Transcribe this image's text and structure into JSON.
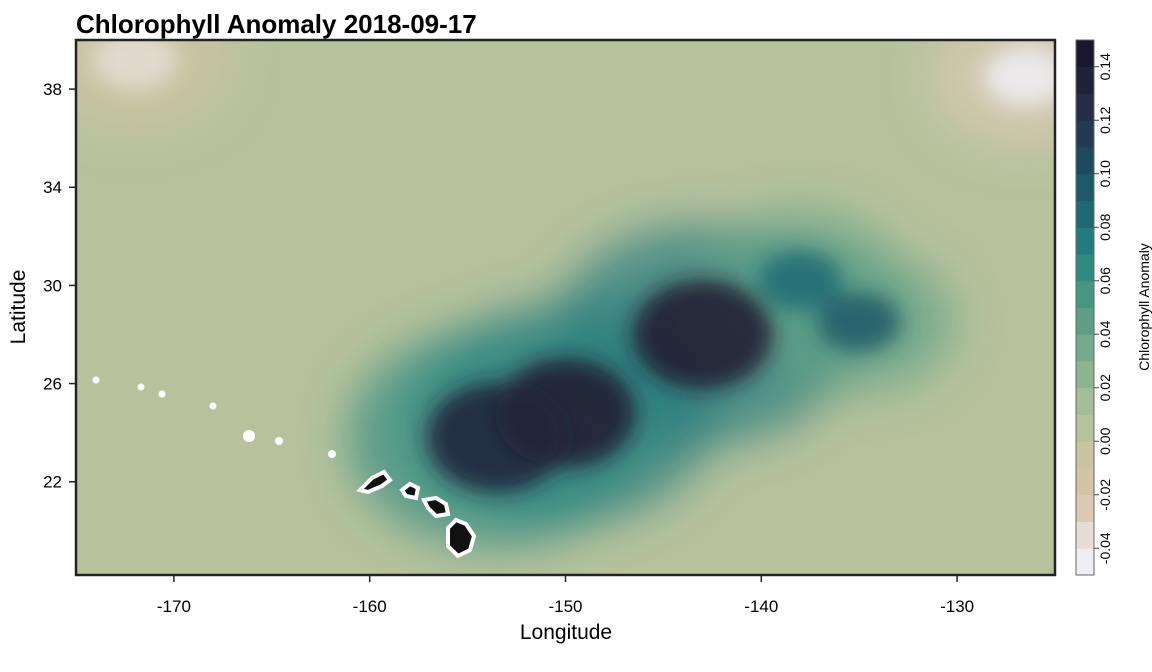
{
  "chart_data": {
    "type": "heatmap",
    "title": "Chlorophyll Anomaly 2018-09-17",
    "xlabel": "Longitude",
    "ylabel": "Latitude",
    "xlim": [
      -175,
      -125
    ],
    "ylim": [
      18.2,
      40
    ],
    "x_ticks": [
      -170,
      -160,
      -150,
      -140,
      -130
    ],
    "y_ticks": [
      22,
      26,
      30,
      34,
      38
    ],
    "colorbar": {
      "label": "Chlorophyll Anomaly",
      "range": [
        -0.05,
        0.15
      ],
      "ticks": [
        "-0.04",
        "-0.02",
        "0.00",
        "0.02",
        "0.04",
        "0.06",
        "0.08",
        "0.10",
        "0.12",
        "0.14"
      ],
      "colors": [
        "#efedf5",
        "#e6ddd6",
        "#ddcab4",
        "#d2c4a4",
        "#c7c49f",
        "#b7c29d",
        "#a3bd97",
        "#8cb58f",
        "#74aa89",
        "#5c9f86",
        "#449582",
        "#2f8a80",
        "#227b7d",
        "#1d6a75",
        "#1d5a6a",
        "#1f4a5e",
        "#223b52",
        "#242d46",
        "#22213a",
        "#1c1730"
      ]
    },
    "background_value": 0.005,
    "features": [
      {
        "name": "high anomaly region",
        "lon": -150,
        "lat": 24.8,
        "value": 0.14
      },
      {
        "name": "high anomaly region",
        "lon": -143,
        "lat": 28.0,
        "value": 0.14
      },
      {
        "name": "high anomaly region",
        "lon": -153.5,
        "lat": 23.8,
        "value": 0.13
      },
      {
        "name": "moderate anomaly region",
        "lon": -138,
        "lat": 30.2,
        "value": 0.08
      },
      {
        "name": "moderate anomaly region",
        "lon": -135,
        "lat": 28.5,
        "value": 0.09
      },
      {
        "name": "negative anomaly region",
        "lon": -172,
        "lat": 39.2,
        "value": -0.04
      },
      {
        "name": "negative anomaly region",
        "lon": -126.5,
        "lat": 38.5,
        "value": -0.05
      }
    ]
  }
}
